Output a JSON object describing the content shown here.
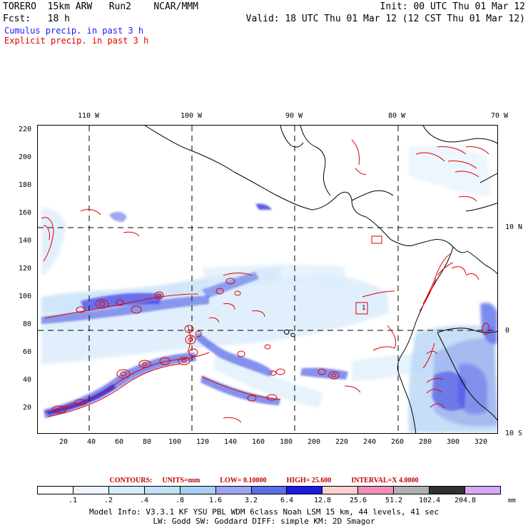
{
  "header": {
    "line1_left": "TORERO  15km ARW   Run2    NCAR/MMM",
    "line1_right": "Init: 00 UTC Thu 01 Mar 12",
    "line2_left": "Fcst:   18 h",
    "line2_right": "Valid: 18 UTC Thu 01 Mar 12 (12 CST Thu 01 Mar 12)",
    "legend_cumulus": "Cumulus precip. in past 3 h",
    "legend_explicit": "Explicit precip. in past 3 h"
  },
  "map": {
    "lon_labels": [
      "110 W",
      "100 W",
      "90 W",
      "80 W",
      "70 W"
    ],
    "lat_labels": [
      "10 N",
      "0",
      "10 S"
    ],
    "y_ticks": [
      "220",
      "200",
      "180",
      "160",
      "140",
      "120",
      "100",
      "80",
      "60",
      "40",
      "20"
    ],
    "x_ticks": [
      "20",
      "40",
      "60",
      "80",
      "100",
      "120",
      "140",
      "160",
      "180",
      "200",
      "220",
      "240",
      "260",
      "280",
      "300",
      "320"
    ],
    "box_label": "1"
  },
  "contours": {
    "label": "CONTOURS:",
    "units": "UNITS=mm",
    "low": "LOW= 0.10000",
    "high": "HIGH=  25.600",
    "interval": "INTERVAL=X  4.0000"
  },
  "colorbar": {
    "levels": [
      ".1",
      ".2",
      ".4",
      ".8",
      "1.6",
      "3.2",
      "6.4",
      "12.8",
      "25.6",
      "51.2",
      "102.4",
      "204.8"
    ],
    "colors": [
      "#ffffff",
      "#eef6ff",
      "#d6ecff",
      "#bfe2f8",
      "#a8d0f4",
      "#9aa6ef",
      "#5c6ee8",
      "#1a1ae0",
      "#f8d2d2",
      "#f290b8",
      "#b0b0b0",
      "#303030",
      "#d8a8f8"
    ],
    "units": "mm"
  },
  "footer": {
    "line1": "Model Info: V3.3.1   KF     YSU PBL  WDM 6class  Noah LSM  15 km,   44 levels,   41 sec",
    "line2": "LW: Godd SW: Goddard DIFF: simple KM: 2D Smagor"
  }
}
